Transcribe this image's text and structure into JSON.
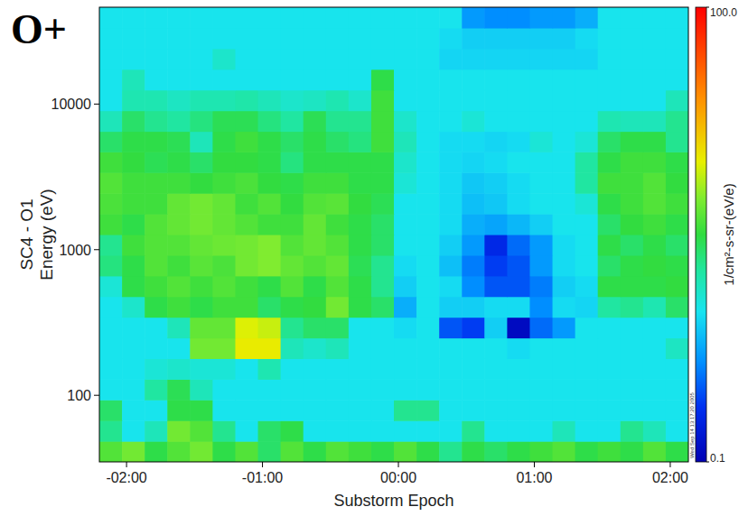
{
  "chart_data": {
    "type": "heatmap",
    "title": "O+",
    "xlabel": "Substorm Epoch",
    "ylabel": [
      "SC4 - O1",
      "Energy (eV)"
    ],
    "annotation": "Wed Sep 14 13:17:20 2005",
    "log": "y",
    "xlim": [
      -2.2,
      2.1333
    ],
    "ylim": [
      34.9,
      46238
    ],
    "xticks": [
      {
        "value": -2,
        "label": "-02:00"
      },
      {
        "value": -1,
        "label": "-01:00"
      },
      {
        "value": 0,
        "label": "00:00"
      },
      {
        "value": 1,
        "label": "01:00"
      },
      {
        "value": 2,
        "label": "02:00"
      }
    ],
    "yticks": [
      100,
      1000,
      10000
    ],
    "x_bins": [
      -2.2,
      -2.0333,
      -1.8667,
      -1.7,
      -1.5333,
      -1.3667,
      -1.2,
      -1.0333,
      -0.8667,
      -0.7,
      -0.5333,
      -0.3667,
      -0.2,
      -0.0333,
      0.1333,
      0.3,
      0.4667,
      0.6333,
      0.8,
      0.9667,
      1.1333,
      1.3,
      1.4667,
      1.6333,
      1.8,
      1.9667,
      2.1333
    ],
    "y_bins": [
      34.9,
      48.4,
      67.1,
      93.1,
      129,
      179,
      248,
      344,
      477,
      661,
      916,
      1271,
      1762,
      2443,
      3388,
      4699,
      6501,
      9016,
      12503,
      17338,
      24044,
      33343,
      46238
    ],
    "cells": [
      [
        4,
        5,
        3,
        4,
        5,
        3,
        4,
        2.5,
        4,
        3,
        4,
        3.5,
        3,
        4,
        3,
        2,
        3,
        2.5,
        3,
        3.5,
        4,
        3,
        3.5,
        3,
        4,
        3
      ],
      [
        2,
        1,
        1.5,
        5,
        4,
        2,
        1,
        2.5,
        3,
        1,
        1,
        1,
        1,
        1,
        1,
        1,
        2,
        1,
        1,
        1,
        1.5,
        1,
        1,
        2,
        1.5,
        1
      ],
      [
        2.5,
        1,
        1,
        3,
        3,
        1,
        1,
        1,
        1,
        1,
        1,
        1,
        1,
        2,
        2,
        1,
        1,
        1,
        1,
        1,
        1,
        1,
        1,
        1,
        1,
        1
      ],
      [
        1,
        1,
        1.8,
        2.8,
        1.5,
        1,
        1,
        1,
        1,
        1,
        1,
        1,
        1,
        1,
        1,
        1,
        1,
        1,
        1,
        1,
        1,
        1,
        1,
        1,
        1,
        1
      ],
      [
        1,
        1,
        1.2,
        1.3,
        1.2,
        1.2,
        1,
        1.6,
        1,
        1,
        1,
        1,
        1,
        1,
        1,
        1,
        1,
        1,
        1,
        1,
        1,
        1,
        1,
        1,
        1,
        1
      ],
      [
        1,
        1,
        1,
        1,
        5,
        5,
        10,
        10,
        1.5,
        1.3,
        1.5,
        1,
        1,
        1,
        1,
        1,
        1,
        1,
        0.9,
        1,
        1,
        1,
        1,
        1,
        1,
        1.4
      ],
      [
        1,
        1,
        1,
        1.5,
        4.5,
        4.5,
        9,
        8,
        2,
        2.5,
        2.5,
        1,
        1,
        0.9,
        1,
        0.3,
        0.25,
        0.8,
        0.12,
        0.35,
        0.5,
        1,
        1,
        1,
        1,
        1
      ],
      [
        1,
        1.3,
        3,
        3.5,
        3,
        3.5,
        3.5,
        2.5,
        3,
        3.2,
        5,
        3,
        2.5,
        0.6,
        1,
        0.8,
        0.8,
        0.9,
        0.9,
        0.45,
        0.9,
        0.85,
        1.8,
        2,
        1.6,
        2.5
      ],
      [
        1.2,
        3,
        3.5,
        4,
        3.5,
        4,
        3.5,
        3,
        4,
        3,
        4,
        3,
        2,
        0.8,
        1,
        0.9,
        0.45,
        0.3,
        0.3,
        0.4,
        0.8,
        0.9,
        3,
        3,
        3,
        3.2
      ],
      [
        2.2,
        3,
        4,
        3.5,
        4.2,
        3.8,
        5,
        5.5,
        4.5,
        4,
        4.5,
        2.8,
        2,
        0.9,
        1,
        0.7,
        0.4,
        0.25,
        0.3,
        0.5,
        0.9,
        1,
        2.5,
        3,
        3.2,
        3
      ],
      [
        2,
        3.5,
        4,
        4,
        4.5,
        4.8,
        5,
        5.5,
        4,
        4.5,
        4,
        3,
        2.5,
        1,
        1,
        0.8,
        0.5,
        0.2,
        0.35,
        0.5,
        0.9,
        1,
        3,
        2.5,
        3,
        2.5
      ],
      [
        3.5,
        3,
        4,
        4.5,
        5,
        4.5,
        4,
        3.5,
        3.5,
        4.5,
        3.5,
        3,
        2.5,
        1,
        1,
        0.9,
        0.6,
        0.55,
        0.65,
        0.8,
        1,
        1,
        2.5,
        3.2,
        3.5,
        3
      ],
      [
        3.8,
        3.5,
        3.5,
        4.5,
        5,
        4.5,
        3.5,
        4,
        3.2,
        4,
        4.2,
        3.2,
        2.8,
        1,
        1,
        0.9,
        0.7,
        0.75,
        0.9,
        1,
        1,
        1.2,
        3,
        3.5,
        4,
        3.5
      ],
      [
        4,
        3.5,
        3.5,
        3.5,
        3.2,
        3.5,
        3.8,
        3.2,
        3,
        3.5,
        3.5,
        3,
        3,
        1.2,
        1,
        0.9,
        0.75,
        0.8,
        0.9,
        1,
        1,
        1.8,
        3.5,
        3.5,
        4,
        3.2
      ],
      [
        3.5,
        3.2,
        2.8,
        3,
        2.5,
        3.2,
        3.2,
        3,
        2.2,
        3,
        3,
        3,
        3,
        1.3,
        1,
        0.9,
        0.85,
        0.9,
        1,
        1,
        1,
        1.8,
        3,
        3.5,
        3.5,
        3
      ],
      [
        2.5,
        3,
        3,
        2.8,
        1.5,
        3,
        3.5,
        3,
        2.5,
        3,
        2.5,
        2.2,
        3.5,
        1.5,
        1,
        0.9,
        0.9,
        0.85,
        0.9,
        1.2,
        1,
        1.2,
        2.5,
        3,
        3,
        2
      ],
      [
        1.5,
        2.5,
        2,
        1.8,
        2.2,
        2.8,
        2.8,
        2.2,
        1.8,
        2.8,
        2,
        2,
        3.5,
        1.3,
        1,
        1,
        1.2,
        1,
        1,
        1,
        1,
        1,
        1.6,
        1.5,
        1.5,
        2
      ],
      [
        1,
        1.6,
        1.6,
        1.4,
        1.6,
        1.6,
        1.7,
        1.5,
        1.3,
        1.4,
        1.6,
        1.3,
        3.5,
        1,
        1,
        1,
        1,
        1,
        1,
        1,
        1,
        1,
        1,
        1,
        1,
        1.5
      ],
      [
        1,
        1.5,
        1,
        1,
        1,
        1,
        1,
        1,
        1,
        1,
        1,
        1,
        3,
        1,
        1,
        1,
        1,
        1,
        1,
        1,
        1,
        1,
        1,
        1,
        1,
        1
      ],
      [
        1,
        1,
        1,
        1,
        1,
        1.3,
        1,
        1,
        1,
        1,
        1,
        1,
        1,
        1,
        1,
        0.85,
        0.85,
        0.85,
        0.85,
        0.85,
        0.85,
        0.85,
        1,
        1,
        1,
        1
      ],
      [
        1,
        1,
        1,
        1,
        1,
        1,
        1,
        1,
        1,
        1,
        1,
        1,
        1,
        1,
        1,
        0.9,
        0.8,
        0.8,
        0.8,
        0.8,
        0.8,
        0.9,
        1,
        1,
        1,
        1
      ],
      [
        1,
        1,
        1,
        1,
        1,
        1,
        1,
        1,
        1,
        1,
        1,
        1,
        1,
        1,
        1,
        1,
        0.5,
        0.45,
        0.45,
        0.5,
        0.5,
        0.6,
        1,
        1,
        1,
        1
      ]
    ],
    "colorbar": {
      "label": "1/cm²-s-sr-(eV/e)",
      "lim": [
        0.1,
        100
      ],
      "ticks": [
        0.1,
        {
          "value": 100,
          "label": "100.0"
        }
      ],
      "log": true
    }
  }
}
